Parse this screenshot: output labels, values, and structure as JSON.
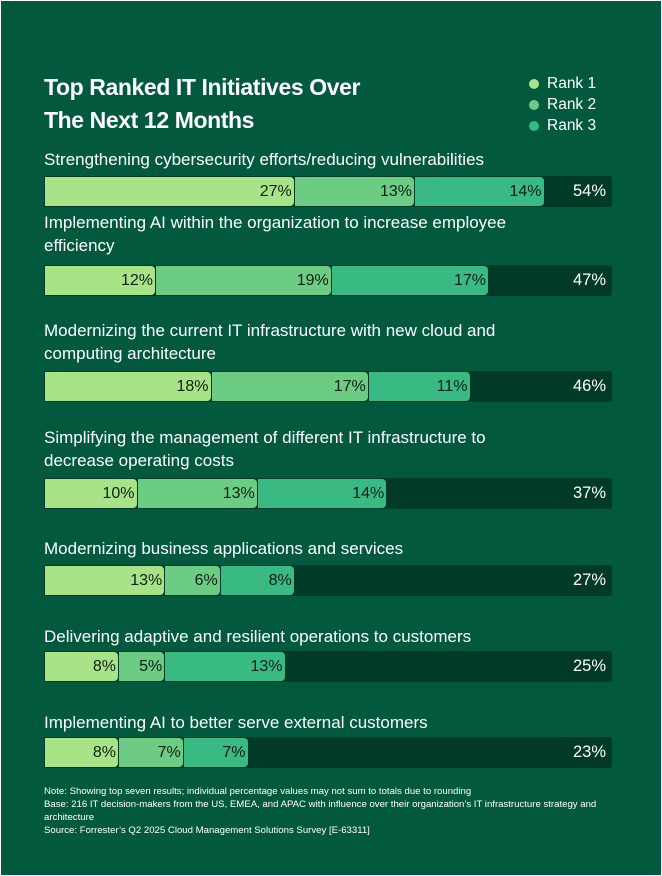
{
  "chart_data": {
    "type": "bar",
    "orientation": "horizontal",
    "stacked": true,
    "title": "Top Ranked IT Initiatives Over\nThe Next 12 Months",
    "colors": {
      "background": "#02593d",
      "track": "#013a27",
      "Rank 1": "#a8e487",
      "Rank 2": "#6dcc84",
      "Rank 3": "#38ba82"
    },
    "legend": {
      "placement": "top-right",
      "entries": [
        "Rank 1",
        "Rank 2",
        "Rank 3"
      ]
    },
    "categories": [
      "Strengthening cybersecurity efforts/reducing vulnerabilities",
      "Implementing AI within the organization to increase employee\nefficiency",
      "Modernizing the current IT infrastructure with new cloud and\ncomputing architecture",
      "Simplifying the management of different IT infrastructure to\ndecrease operating costs",
      "Modernizing business applications and services",
      "Delivering adaptive and resilient operations to customers",
      "Implementing AI to better serve external customers"
    ],
    "series": [
      {
        "name": "Rank 1",
        "values": [
          27,
          12,
          18,
          10,
          13,
          8,
          8
        ]
      },
      {
        "name": "Rank 2",
        "values": [
          13,
          19,
          17,
          13,
          6,
          5,
          7
        ]
      },
      {
        "name": "Rank 3",
        "values": [
          14,
          17,
          11,
          14,
          8,
          13,
          7
        ]
      }
    ],
    "totals": [
      54,
      47,
      46,
      37,
      27,
      25,
      23
    ],
    "unit": "%"
  },
  "notes": [
    "Note: Showing top seven results; individual percentage values may not sum to totals due to rounding",
    "Base: 216 IT decision-makers from the US, EMEA, and APAC with influence over their organization’s IT infrastructure strategy and architecture",
    "Source: Forrester’s Q2 2025 Cloud Management Solutions Survey [E-63311]"
  ]
}
